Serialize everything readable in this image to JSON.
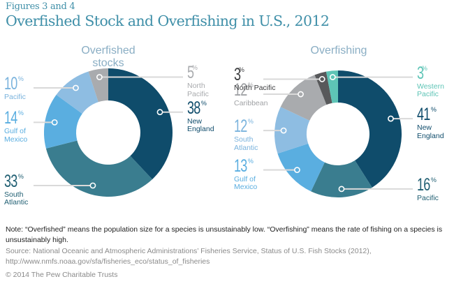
{
  "header": {
    "figure_label": "Figures 3 and 4",
    "title": "Overfished Stock and Overfishing in U.S., 2012"
  },
  "colors": {
    "title": "#3f8fa8",
    "chart_title": "#8aaec4",
    "leader_line": "#d9d9d9"
  },
  "chart_data": [
    {
      "type": "pie",
      "variant": "donut",
      "title": "Overfished stocks",
      "unit": "%",
      "slices": [
        {
          "label": "New England",
          "value": 38,
          "color": "#0f4c6b",
          "text_color": "#0f4c6b",
          "label_side": "right"
        },
        {
          "label": "South Atlantic",
          "value": 33,
          "color": "#3a7d8f",
          "text_color": "#1f5e72",
          "label_side": "left"
        },
        {
          "label": "Gulf of Mexico",
          "value": 14,
          "color": "#5aaee0",
          "text_color": "#5aaee0",
          "label_side": "left"
        },
        {
          "label": "Pacific",
          "value": 10,
          "color": "#8ebde2",
          "text_color": "#7ab3dd",
          "label_side": "left"
        },
        {
          "label": "North Pacific",
          "value": 5,
          "color": "#a9abae",
          "text_color": "#a9abae",
          "label_side": "right"
        }
      ]
    },
    {
      "type": "pie",
      "variant": "donut",
      "title": "Overfishing",
      "unit": "%",
      "slices": [
        {
          "label": "New England",
          "value": 41,
          "color": "#0f4c6b",
          "text_color": "#0f4c6b",
          "label_side": "right"
        },
        {
          "label": "Pacific",
          "value": 16,
          "color": "#3a7d8f",
          "text_color": "#1f5e72",
          "label_side": "right"
        },
        {
          "label": "Gulf of Mexico",
          "value": 13,
          "color": "#5aaee0",
          "text_color": "#5aaee0",
          "label_side": "left"
        },
        {
          "label": "South Atlantic",
          "value": 12,
          "color": "#8ebde2",
          "text_color": "#7ab3dd",
          "label_side": "left"
        },
        {
          "label": "Caribbean",
          "value": 12,
          "color": "#a9abae",
          "text_color": "#a0a2a5",
          "label_side": "left"
        },
        {
          "label": "North Pacific",
          "value": 3,
          "color": "#58595b",
          "text_color": "#3c3d3f",
          "label_side": "left"
        },
        {
          "label": "Western Pacific",
          "value": 3,
          "color": "#5ec4b6",
          "text_color": "#5ec4b6",
          "label_side": "right"
        }
      ]
    }
  ],
  "footer": {
    "note": "Note: “Overfished” means the population size for a species is unsustainably low. “Overfishing” means the rate of fishing on a species is unsustainably high.",
    "source": "Source: National Oceanic and Atmospheric Administrations’ Fisheries Service, Status of U.S. Fish Stocks (2012), http://www.nmfs.noaa.gov/sfa/fisheries_eco/status_of_fisheries",
    "copyright": "© 2014 The Pew Charitable Trusts"
  }
}
